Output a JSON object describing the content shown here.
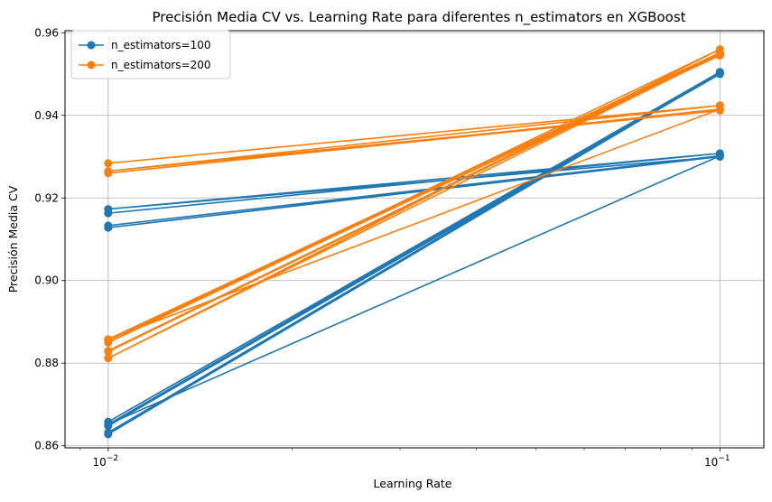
{
  "chart_data": {
    "type": "line",
    "title": "Precisión Media CV vs. Learning Rate para diferentes n_estimators en XGBoost",
    "xlabel": "Learning Rate",
    "ylabel": "Precisión Media CV",
    "xscale": "log",
    "xlim": [
      0.0085,
      0.118
    ],
    "ylim": [
      0.8595,
      0.9605
    ],
    "grid": true,
    "legend_position": "top-left",
    "x_ticks": [
      {
        "value": 0.01,
        "base": "10",
        "exp": "−2"
      },
      {
        "value": 0.1,
        "base": "10",
        "exp": "−1"
      }
    ],
    "y_ticks": [
      {
        "value": 0.86,
        "label": "0.86"
      },
      {
        "value": 0.88,
        "label": "0.88"
      },
      {
        "value": 0.9,
        "label": "0.90"
      },
      {
        "value": 0.92,
        "label": "0.92"
      },
      {
        "value": 0.94,
        "label": "0.94"
      },
      {
        "value": 0.96,
        "label": "0.96"
      }
    ],
    "series": [
      {
        "name": "n_estimators=100",
        "color": "#1f77b4",
        "x": [
          0.01,
          0.1,
          0.01,
          0.1,
          0.01,
          0.1,
          0.01,
          0.1,
          0.01,
          0.1,
          0.01,
          0.1,
          0.01,
          0.1,
          0.01,
          0.1,
          0.01,
          0.1
        ],
        "y": [
          0.9163,
          0.9308,
          0.9173,
          0.93,
          0.9128,
          0.9302,
          0.9133,
          0.9302,
          0.8652,
          0.9502,
          0.8628,
          0.9502,
          0.8632,
          0.9505,
          0.8658,
          0.9502,
          0.8648,
          0.95
        ]
      },
      {
        "name": "n_estimators=200",
        "color": "#ff7f0e",
        "x": [
          0.01,
          0.1,
          0.01,
          0.1,
          0.01,
          0.1,
          0.01,
          0.1,
          0.01,
          0.1,
          0.01,
          0.1,
          0.01,
          0.1,
          0.01,
          0.1,
          0.01,
          0.1
        ],
        "y": [
          0.9284,
          0.9424,
          0.9265,
          0.9412,
          0.926,
          0.9415,
          0.8858,
          0.955,
          0.883,
          0.9548,
          0.8812,
          0.956,
          0.885,
          0.9548,
          0.8828,
          0.9552,
          0.8855,
          0.9545
        ]
      }
    ]
  }
}
